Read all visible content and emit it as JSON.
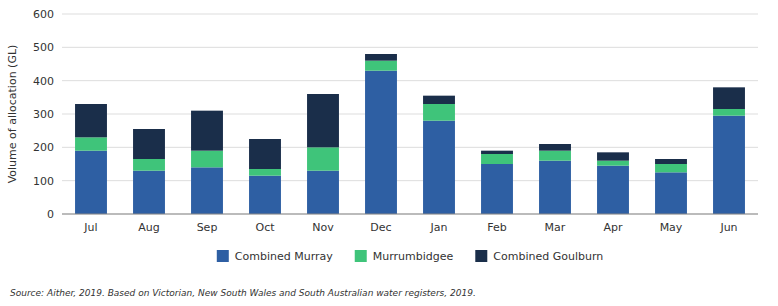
{
  "chart_data": {
    "type": "bar",
    "stacked": true,
    "categories": [
      "Jul",
      "Aug",
      "Sep",
      "Oct",
      "Nov",
      "Dec",
      "Jan",
      "Feb",
      "Mar",
      "Apr",
      "May",
      "Jun"
    ],
    "series": [
      {
        "name": "Combined Murray",
        "color": "#2e5fa3",
        "values": [
          190,
          130,
          140,
          115,
          130,
          430,
          280,
          150,
          160,
          145,
          125,
          295
        ]
      },
      {
        "name": "Murrumbidgee",
        "color": "#3fc47a",
        "values": [
          40,
          35,
          50,
          20,
          70,
          30,
          50,
          30,
          30,
          15,
          25,
          20
        ]
      },
      {
        "name": "Combined Goulburn",
        "color": "#1a2e4a",
        "values": [
          100,
          90,
          120,
          90,
          160,
          20,
          25,
          10,
          20,
          25,
          15,
          65
        ]
      }
    ],
    "y_label": "Volume of allocation (GL)",
    "ylim": [
      0,
      600
    ],
    "yticks": [
      0,
      100,
      200,
      300,
      400,
      500,
      600
    ],
    "grid": true,
    "legend": "bottom",
    "annotations": [
      "Source: Aither, 2019. Based on Victorian, New South Wales and South Australian water registers, 2019."
    ]
  }
}
